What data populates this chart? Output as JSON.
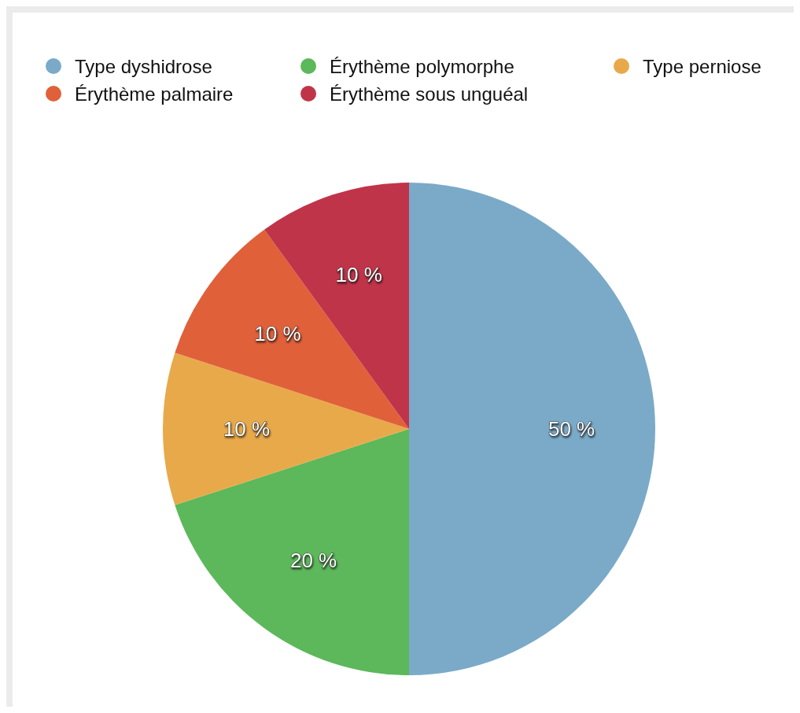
{
  "chart_data": {
    "type": "pie",
    "categories": [
      "Type dyshidrose",
      "Érythème polymorphe",
      "Type perniose",
      "Érythème palmaire",
      "Érythème sous unguéal"
    ],
    "values": [
      50,
      20,
      10,
      10,
      10
    ],
    "value_labels": [
      "50 %",
      "20 %",
      "10 %",
      "10 %",
      "10 %"
    ],
    "colors": [
      "#7aaac8",
      "#5cb85a",
      "#e8a94a",
      "#e0603a",
      "#c0344a"
    ],
    "legend": "top"
  }
}
